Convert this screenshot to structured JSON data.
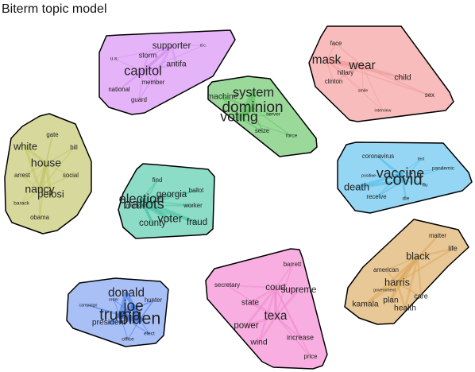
{
  "title": "Biterm topic model",
  "chart_data": {
    "type": "network",
    "title": "Biterm topic model",
    "topics": [
      {
        "name": "",
        "color": "#e5b3f8",
        "edge_color": "#d48ff0",
        "words": [
          {
            "text": "capitol",
            "weight": 10
          },
          {
            "text": "supporter",
            "weight": 6
          },
          {
            "text": "antifa",
            "weight": 5
          },
          {
            "text": "storm",
            "weight": 4
          },
          {
            "text": "member",
            "weight": 3
          },
          {
            "text": "national",
            "weight": 3
          },
          {
            "text": "guard",
            "weight": 3
          },
          {
            "text": "u.s.",
            "weight": 2
          },
          {
            "text": "d.c.",
            "weight": 1
          }
        ]
      },
      {
        "name": "",
        "color": "#f9bcbc",
        "edge_color": "#f19b9b",
        "words": [
          {
            "text": "mask",
            "weight": 9
          },
          {
            "text": "wear",
            "weight": 9
          },
          {
            "text": "child",
            "weight": 5
          },
          {
            "text": "face",
            "weight": 3
          },
          {
            "text": "hillary",
            "weight": 3
          },
          {
            "text": "clinton",
            "weight": 3
          },
          {
            "text": "sex",
            "weight": 3
          },
          {
            "text": "smile",
            "weight": 1
          },
          {
            "text": "interview",
            "weight": 1
          }
        ]
      },
      {
        "name": "",
        "color": "#9ad99a",
        "edge_color": "#5cbf5c",
        "words": [
          {
            "text": "dominion",
            "weight": 12
          },
          {
            "text": "voting",
            "weight": 11
          },
          {
            "text": "system",
            "weight": 10
          },
          {
            "text": "machine",
            "weight": 5
          },
          {
            "text": "server",
            "weight": 2
          },
          {
            "text": "seize",
            "weight": 3
          },
          {
            "text": "force",
            "weight": 2
          }
        ]
      },
      {
        "name": "",
        "color": "#d6d99b",
        "edge_color": "#c2c66a",
        "words": [
          {
            "text": "house",
            "weight": 8
          },
          {
            "text": "nancy",
            "weight": 8
          },
          {
            "text": "white",
            "weight": 7
          },
          {
            "text": "pelosi",
            "weight": 7
          },
          {
            "text": "gate",
            "weight": 3
          },
          {
            "text": "bill",
            "weight": 3
          },
          {
            "text": "arrest",
            "weight": 3
          },
          {
            "text": "social",
            "weight": 3
          },
          {
            "text": "barack",
            "weight": 2
          },
          {
            "text": "obama",
            "weight": 3
          }
        ]
      },
      {
        "name": "",
        "color": "#94d6f3",
        "edge_color": "#4fb9e8",
        "words": [
          {
            "text": "covid",
            "weight": 13
          },
          {
            "text": "vaccine",
            "weight": 11
          },
          {
            "text": "death",
            "weight": 7
          },
          {
            "text": "coronavirus",
            "weight": 3
          },
          {
            "text": "receive",
            "weight": 3
          },
          {
            "text": "pandemic",
            "weight": 2
          },
          {
            "text": "die",
            "weight": 2
          },
          {
            "text": "flu",
            "weight": 2
          },
          {
            "text": "test",
            "weight": 1
          },
          {
            "text": "positive",
            "weight": 1
          }
        ]
      },
      {
        "name": "",
        "color": "#8ddcc7",
        "edge_color": "#4cc4a4",
        "words": [
          {
            "text": "ballots",
            "weight": 11
          },
          {
            "text": "election",
            "weight": 10
          },
          {
            "text": "voter",
            "weight": 8
          },
          {
            "text": "georgia",
            "weight": 6
          },
          {
            "text": "county",
            "weight": 6
          },
          {
            "text": "fraud",
            "weight": 6
          },
          {
            "text": "find",
            "weight": 3
          },
          {
            "text": "ballot",
            "weight": 3
          },
          {
            "text": "worker",
            "weight": 3
          },
          {
            "text": "michigan",
            "weight": 2
          }
        ]
      },
      {
        "name": "",
        "color": "#e9c897",
        "edge_color": "#dcaa5c",
        "words": [
          {
            "text": "black",
            "weight": 7
          },
          {
            "text": "harris",
            "weight": 7
          },
          {
            "text": "kamala",
            "weight": 5
          },
          {
            "text": "plan",
            "weight": 5
          },
          {
            "text": "health",
            "weight": 5
          },
          {
            "text": "care",
            "weight": 4
          },
          {
            "text": "life",
            "weight": 4
          },
          {
            "text": "matter",
            "weight": 3
          },
          {
            "text": "american",
            "weight": 3
          },
          {
            "text": "government",
            "weight": 1
          }
        ]
      },
      {
        "name": "",
        "color": "#a9c0f7",
        "edge_color": "#3d78ee",
        "words": [
          {
            "text": "biden",
            "weight": 14
          },
          {
            "text": "trump",
            "weight": 13
          },
          {
            "text": "joe",
            "weight": 12
          },
          {
            "text": "donald",
            "weight": 9
          },
          {
            "text": "president",
            "weight": 5
          },
          {
            "text": "hunter",
            "weight": 3
          },
          {
            "text": "elect",
            "weight": 2
          },
          {
            "text": "office",
            "weight": 2
          },
          {
            "text": "campaign",
            "weight": 1
          },
          {
            "text": "order",
            "weight": 1
          }
        ]
      },
      {
        "name": "",
        "color": "#f8aee0",
        "edge_color": "#ee8ccd",
        "words": [
          {
            "text": "texa",
            "weight": 9
          },
          {
            "text": "court",
            "weight": 6
          },
          {
            "text": "supreme",
            "weight": 6
          },
          {
            "text": "power",
            "weight": 6
          },
          {
            "text": "state",
            "weight": 5
          },
          {
            "text": "wind",
            "weight": 5
          },
          {
            "text": "increase",
            "weight": 4
          },
          {
            "text": "barrett",
            "weight": 3
          },
          {
            "text": "secretary",
            "weight": 3
          },
          {
            "text": "price",
            "weight": 3
          }
        ]
      }
    ]
  }
}
